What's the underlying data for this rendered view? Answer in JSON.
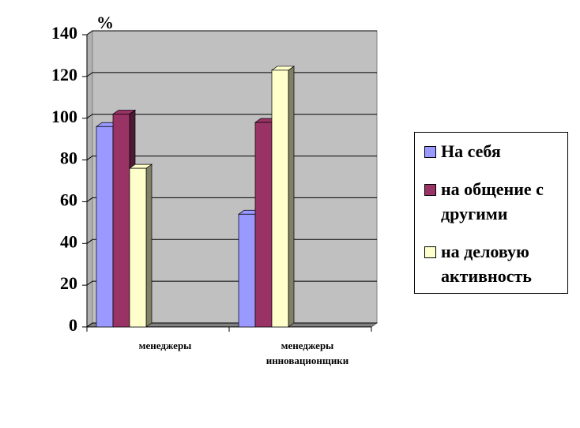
{
  "chart_data": {
    "type": "bar3d",
    "y_label": "%",
    "categories": [
      "менеджеры",
      "менеджеры инновационщики"
    ],
    "series": [
      {
        "name": "На себя",
        "color": "#9999ff",
        "values": [
          96,
          54
        ]
      },
      {
        "name": "на общение с другими",
        "color": "#993366",
        "values": [
          102,
          98
        ]
      },
      {
        "name": "на деловую активность",
        "color": "#ffffcc",
        "values": [
          76,
          123
        ]
      }
    ],
    "ylim": [
      0,
      140
    ],
    "yticks": [
      0,
      20,
      40,
      60,
      80,
      100,
      120,
      140
    ],
    "grid": true,
    "legend": "right"
  }
}
